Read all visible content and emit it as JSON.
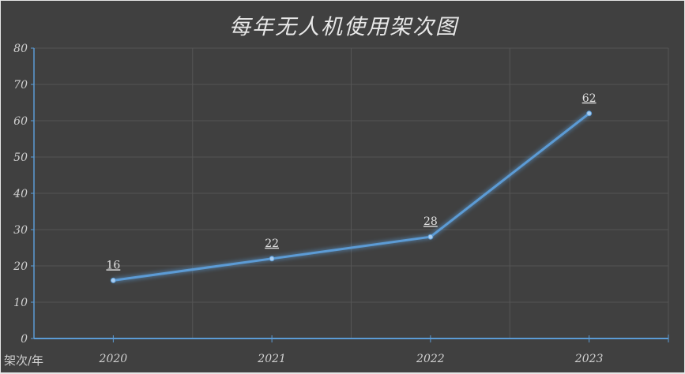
{
  "chart_data": {
    "type": "line",
    "title": "每年无人机使用架次图",
    "xlabel": "架次/年",
    "ylabel": "",
    "categories": [
      "2020",
      "2021",
      "2022",
      "2023"
    ],
    "series": [
      {
        "values": [
          16,
          22,
          28,
          62
        ],
        "color": "#5b9bd5"
      }
    ],
    "data_labels": [
      "16",
      "22",
      "28",
      "62"
    ],
    "ylim": [
      0,
      80
    ],
    "yticks": [
      "0",
      "10",
      "20",
      "30",
      "40",
      "50",
      "60",
      "70",
      "80"
    ],
    "grid": true,
    "legend": "none",
    "colors": {
      "background": "#404040",
      "axis": "#5b9bd5",
      "grid": "#555555",
      "line": "#5b9bd5"
    }
  }
}
